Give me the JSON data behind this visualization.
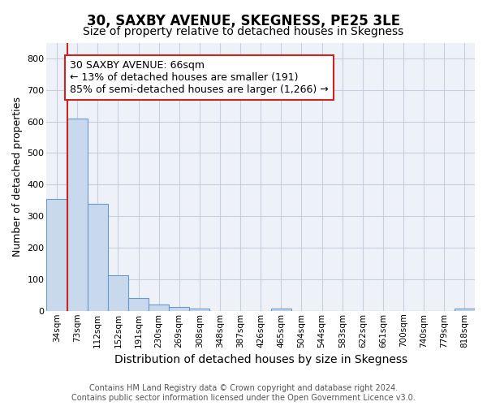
{
  "title1": "30, SAXBY AVENUE, SKEGNESS, PE25 3LE",
  "title2": "Size of property relative to detached houses in Skegness",
  "xlabel": "Distribution of detached houses by size in Skegness",
  "ylabel": "Number of detached properties",
  "footer1": "Contains HM Land Registry data © Crown copyright and database right 2024.",
  "footer2": "Contains public sector information licensed under the Open Government Licence v3.0.",
  "annotation_line1": "30 SAXBY AVENUE: 66sqm",
  "annotation_line2": "← 13% of detached houses are smaller (191)",
  "annotation_line3": "85% of semi-detached houses are larger (1,266) →",
  "bar_color": "#c8d9ee",
  "bar_edge_color": "#6699cc",
  "ref_line_color": "#cc2222",
  "categories": [
    "34sqm",
    "73sqm",
    "112sqm",
    "152sqm",
    "191sqm",
    "230sqm",
    "269sqm",
    "308sqm",
    "348sqm",
    "387sqm",
    "426sqm",
    "465sqm",
    "504sqm",
    "544sqm",
    "583sqm",
    "622sqm",
    "661sqm",
    "700sqm",
    "740sqm",
    "779sqm",
    "818sqm"
  ],
  "values": [
    355,
    610,
    340,
    113,
    40,
    20,
    13,
    8,
    0,
    0,
    0,
    8,
    0,
    0,
    0,
    0,
    0,
    0,
    0,
    0,
    8
  ],
  "ylim": [
    0,
    850
  ],
  "yticks": [
    0,
    100,
    200,
    300,
    400,
    500,
    600,
    700,
    800
  ],
  "grid_color": "#c8cfe0",
  "background_color": "#eef2f8",
  "title1_fontsize": 12,
  "title2_fontsize": 10,
  "xlabel_fontsize": 10,
  "ylabel_fontsize": 9,
  "annotation_fontsize": 9,
  "footer_fontsize": 7
}
